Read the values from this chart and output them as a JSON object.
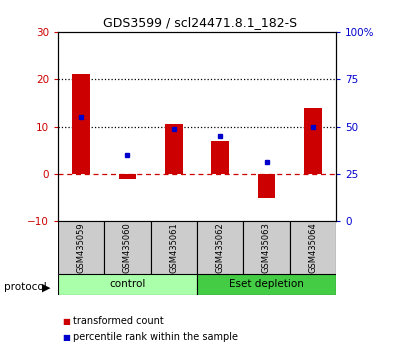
{
  "title": "GDS3599 / scl24471.8.1_182-S",
  "samples": [
    "GSM435059",
    "GSM435060",
    "GSM435061",
    "GSM435062",
    "GSM435063",
    "GSM435064"
  ],
  "bar_values": [
    21.0,
    -1.0,
    10.5,
    7.0,
    -5.0,
    14.0
  ],
  "dot_values": [
    12.0,
    4.0,
    9.5,
    8.0,
    2.5,
    10.0
  ],
  "bar_color": "#cc0000",
  "dot_color": "#0000cc",
  "ylim_left": [
    -10,
    30
  ],
  "ylim_right": [
    0,
    100
  ],
  "yticks_left": [
    -10,
    0,
    10,
    20,
    30
  ],
  "yticks_right": [
    0,
    25,
    50,
    75,
    100
  ],
  "yticklabels_right": [
    "0",
    "25",
    "50",
    "75",
    "100%"
  ],
  "groups": [
    {
      "label": "control",
      "indices": [
        0,
        1,
        2
      ],
      "color": "#aaffaa"
    },
    {
      "label": "Eset depletion",
      "indices": [
        3,
        4,
        5
      ],
      "color": "#44cc44"
    }
  ],
  "protocol_label": "protocol",
  "legend_items": [
    {
      "label": "transformed count",
      "color": "#cc0000"
    },
    {
      "label": "percentile rank within the sample",
      "color": "#0000cc"
    }
  ],
  "background_color": "#ffffff",
  "label_box_color": "#cccccc",
  "title_fontsize": 9,
  "tick_fontsize": 7.5,
  "bar_width": 0.38
}
